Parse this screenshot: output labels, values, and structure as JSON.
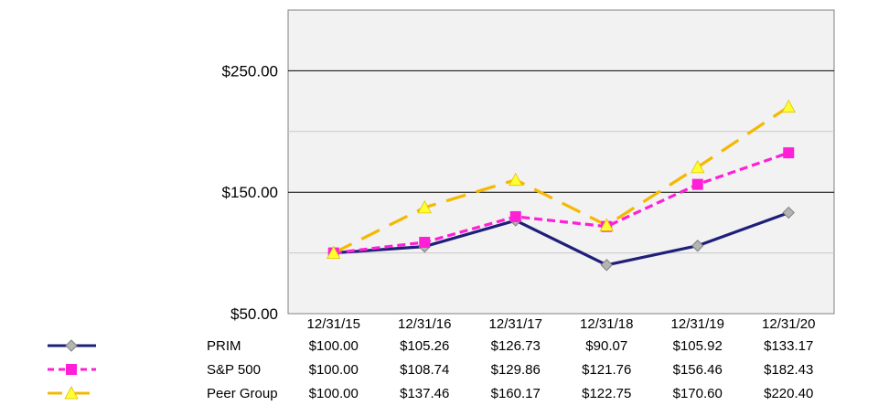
{
  "chart_data": {
    "type": "line",
    "categories": [
      "12/31/15",
      "12/31/16",
      "12/31/17",
      "12/31/18",
      "12/31/19",
      "12/31/20"
    ],
    "ylim": [
      50,
      300
    ],
    "yticks": [
      "$50.00",
      "$150.00",
      "$250.00"
    ],
    "ytick_values": [
      50,
      150,
      250
    ],
    "grid": true,
    "legend_placement": "bottom-left data table",
    "series": [
      {
        "name": "PRIM",
        "values": [
          100.0,
          105.26,
          126.73,
          90.07,
          105.92,
          133.17
        ],
        "labels": [
          "$100.00",
          "$105.26",
          "$126.73",
          "$90.07",
          "$105.92",
          "$133.17"
        ],
        "color": "#1f1f7a",
        "marker_color": "#b4b4b4",
        "marker": "diamond",
        "dash": "solid"
      },
      {
        "name": "S&P 500",
        "values": [
          100.0,
          108.74,
          129.86,
          121.76,
          156.46,
          182.43
        ],
        "labels": [
          "$100.00",
          "$108.74",
          "$129.86",
          "$121.76",
          "$156.46",
          "$182.43"
        ],
        "color": "#ff1fd6",
        "marker_color": "#ff1fd6",
        "marker": "square",
        "dash": "short"
      },
      {
        "name": "Peer Group",
        "values": [
          100.0,
          137.46,
          160.17,
          122.75,
          170.6,
          220.4
        ],
        "labels": [
          "$100.00",
          "$137.46",
          "$160.17",
          "$122.75",
          "$170.60",
          "$220.40"
        ],
        "color": "#f5b800",
        "marker_color": "#ffff33",
        "marker": "triangle",
        "dash": "long"
      }
    ]
  }
}
